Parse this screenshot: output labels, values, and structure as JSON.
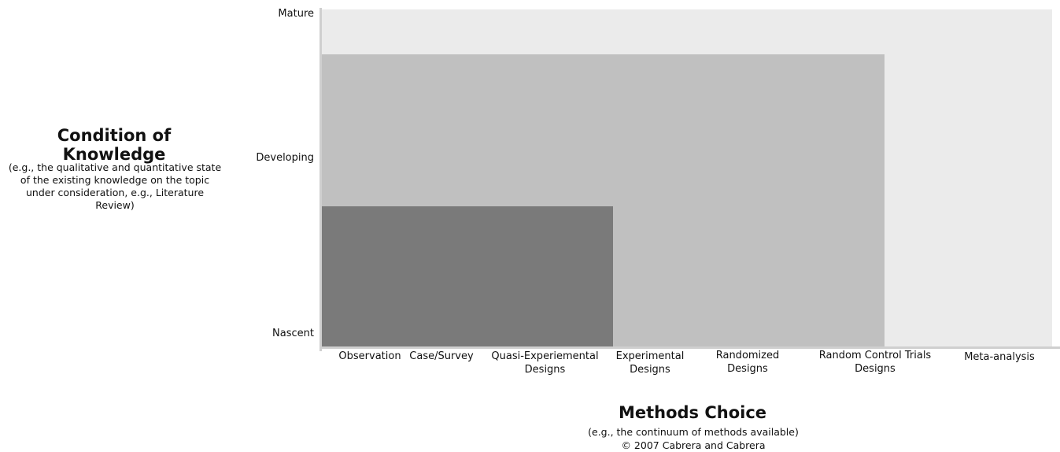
{
  "y_axis": {
    "title": "Condition of Knowledge",
    "subtitle": "(e.g., the qualitative and quantitative state of the existing knowledge on the topic under consideration, e.g., Literature Review)",
    "levels": [
      "Mature",
      "Developing",
      "Nascent"
    ]
  },
  "x_axis": {
    "title": "Methods Choice",
    "subtitle": "(e.g., the continuum of methods available)",
    "copyright": "© 2007 Cabrera and Cabrera",
    "methods": [
      "Observation",
      "Case/Survey",
      "Quasi-Experiemental Designs",
      "Experimental Designs",
      "Randomized Designs",
      "Random Control Trials Designs",
      "Meta-analysis"
    ]
  },
  "regions": [
    {
      "name": "mature",
      "color": "#ebebeb"
    },
    {
      "name": "developing",
      "color": "#c0c0c0"
    },
    {
      "name": "nascent",
      "color": "#7a7a7a"
    }
  ]
}
